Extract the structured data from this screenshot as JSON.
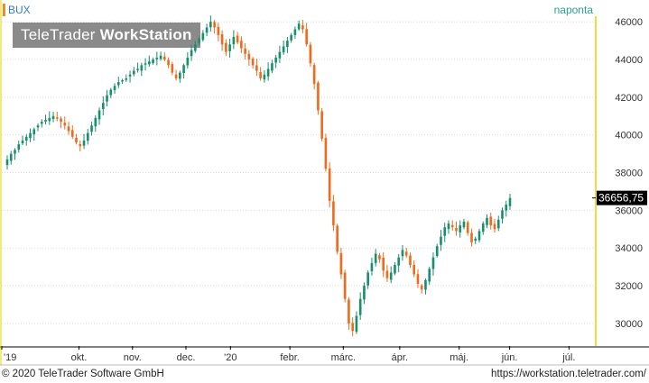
{
  "header": {
    "instrument": "BUX",
    "frequency": "naponta",
    "watermark_a": "TeleTrader",
    "watermark_b": "WorkStation"
  },
  "footer": {
    "copyright": "© 2020 TeleTrader Software GmbH",
    "url": "https://workstation.teletrader.com/"
  },
  "colors": {
    "up": "#1a8f6e",
    "down": "#f06a1e",
    "last_price_box": "#000000",
    "axis_frame": "#e8d000"
  },
  "chart_data": {
    "type": "candlestick",
    "title": "BUX",
    "period": "naponta",
    "last_value_label": "36656,75",
    "last_value": 36656.75,
    "ylim": [
      28800,
      46200
    ],
    "y_ticks": [
      30000,
      32000,
      34000,
      36000,
      38000,
      40000,
      42000,
      44000,
      46000
    ],
    "y_tick_labels": [
      "30000",
      "32000",
      "34000",
      "36000",
      "38000",
      "40000",
      "42000",
      "44000",
      "46000"
    ],
    "x_tick_labels": [
      "'19",
      "okt.",
      "nov.",
      "dec.",
      "'20",
      "febr.",
      "márc.",
      "ápr.",
      "máj.",
      "jún.",
      "júl."
    ],
    "close_series": [
      38700,
      39000,
      39200,
      39500,
      39700,
      39900,
      40100,
      40300,
      40500,
      40700,
      40800,
      40900,
      41000,
      40900,
      40700,
      40500,
      40200,
      39900,
      39600,
      39400,
      39700,
      40100,
      40500,
      40900,
      41300,
      41700,
      42100,
      42400,
      42600,
      42800,
      42900,
      43000,
      43200,
      43400,
      43500,
      43700,
      43800,
      43900,
      44000,
      44100,
      44200,
      44000,
      43700,
      43300,
      43000,
      43300,
      43700,
      44100,
      44500,
      44800,
      45100,
      45400,
      45700,
      46000,
      45700,
      45300,
      44800,
      44400,
      44800,
      45200,
      44900,
      44600,
      44300,
      44000,
      43700,
      43400,
      43000,
      43200,
      43500,
      43800,
      44100,
      44400,
      44700,
      45000,
      45300,
      45600,
      45900,
      45600,
      44800,
      43800,
      42700,
      41300,
      39800,
      38200,
      36500,
      35200,
      33800,
      32600,
      31300,
      30000,
      29600,
      30400,
      31300,
      32000,
      32700,
      33200,
      33700,
      33400,
      32800,
      32400,
      32700,
      33100,
      33500,
      33900,
      33600,
      33100,
      32600,
      32100,
      31800,
      32300,
      32900,
      33500,
      34100,
      34600,
      35100,
      35300,
      35100,
      34900,
      35200,
      35400,
      34800,
      34300,
      34500,
      34900,
      35300,
      35600,
      35200,
      35000,
      35500,
      36000,
      36300,
      36656.75
    ]
  }
}
